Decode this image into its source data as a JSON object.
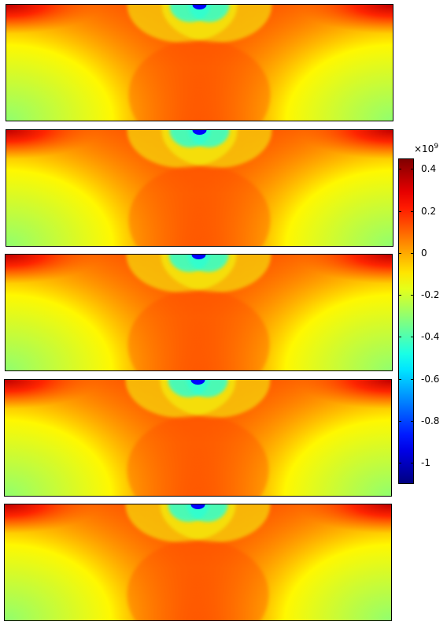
{
  "chart_data": {
    "type": "heatmap",
    "panel_count": 5,
    "colormap": "jet",
    "colorbar": {
      "multiplier_base": "×10",
      "multiplier_exponent": "9",
      "range": [
        -1.1,
        0.45
      ],
      "ticks": [
        {
          "value": 0.4,
          "label": "0.4"
        },
        {
          "value": 0.2,
          "label": "0.2"
        },
        {
          "value": 0,
          "label": "0"
        },
        {
          "value": -0.2,
          "label": "-0.2"
        },
        {
          "value": -0.4,
          "label": "-0.4"
        },
        {
          "value": -0.6,
          "label": "-0.6"
        },
        {
          "value": -0.8,
          "label": "-0.8"
        },
        {
          "value": -1,
          "label": "-1"
        }
      ]
    },
    "field_levels": {
      "corner_top": 0.35,
      "bottom_edge": -0.3,
      "center_body": 0.1,
      "top_center_notch": -0.9
    }
  }
}
